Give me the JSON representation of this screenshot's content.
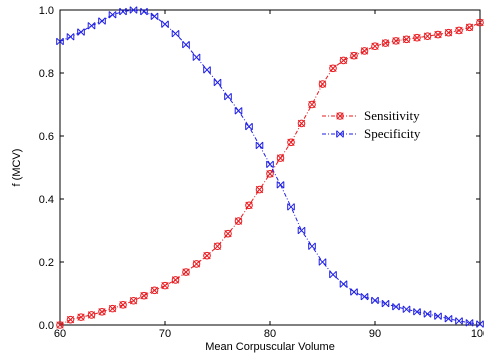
{
  "chart_data": {
    "type": "line",
    "xlabel": "Mean Corpuscular Volume",
    "ylabel": "f (MCV)",
    "xlim": [
      60,
      100
    ],
    "ylim": [
      0.0,
      1.0
    ],
    "xticks": [
      60,
      70,
      80,
      90,
      100
    ],
    "xtick_labels": [
      "60",
      "70",
      "80",
      "90",
      "100"
    ],
    "yticks": [
      0.0,
      0.2,
      0.4,
      0.6,
      0.8,
      1.0
    ],
    "ytick_labels": [
      "0.0",
      "0.2",
      "0.4",
      "0.6",
      "0.8",
      "1.0"
    ],
    "grid": false,
    "legend_position": "right-middle",
    "series": [
      {
        "name": "Sensitivity",
        "color": "#e8191e",
        "marker": "circle-x",
        "line_style": "dash-dot",
        "x": [
          60,
          61,
          62,
          63,
          64,
          65,
          66,
          67,
          68,
          69,
          70,
          71,
          72,
          73,
          74,
          75,
          76,
          77,
          78,
          79,
          80,
          81,
          82,
          83,
          84,
          85,
          86,
          87,
          88,
          89,
          90,
          91,
          92,
          93,
          94,
          95,
          96,
          97,
          98,
          99,
          100
        ],
        "y": [
          0.0,
          0.017,
          0.025,
          0.032,
          0.042,
          0.052,
          0.064,
          0.077,
          0.093,
          0.11,
          0.125,
          0.143,
          0.168,
          0.194,
          0.22,
          0.25,
          0.29,
          0.33,
          0.38,
          0.43,
          0.48,
          0.53,
          0.58,
          0.64,
          0.7,
          0.765,
          0.815,
          0.84,
          0.855,
          0.87,
          0.885,
          0.895,
          0.902,
          0.907,
          0.912,
          0.917,
          0.922,
          0.928,
          0.935,
          0.945,
          0.96
        ]
      },
      {
        "name": "Specificity",
        "color": "#1e1ee6",
        "marker": "bowtie-x",
        "line_style": "dash-dot",
        "x": [
          60,
          61,
          62,
          63,
          64,
          65,
          66,
          67,
          68,
          69,
          70,
          71,
          72,
          73,
          74,
          75,
          76,
          77,
          78,
          79,
          80,
          81,
          82,
          83,
          84,
          85,
          86,
          87,
          88,
          89,
          90,
          91,
          92,
          93,
          94,
          95,
          96,
          97,
          98,
          99,
          100
        ],
        "y": [
          0.9,
          0.915,
          0.93,
          0.95,
          0.965,
          0.985,
          0.995,
          1.0,
          0.995,
          0.98,
          0.955,
          0.925,
          0.89,
          0.85,
          0.81,
          0.77,
          0.725,
          0.68,
          0.63,
          0.57,
          0.51,
          0.445,
          0.375,
          0.3,
          0.25,
          0.2,
          0.16,
          0.13,
          0.105,
          0.09,
          0.078,
          0.068,
          0.058,
          0.05,
          0.042,
          0.035,
          0.028,
          0.02,
          0.013,
          0.007,
          0.003
        ]
      }
    ]
  }
}
